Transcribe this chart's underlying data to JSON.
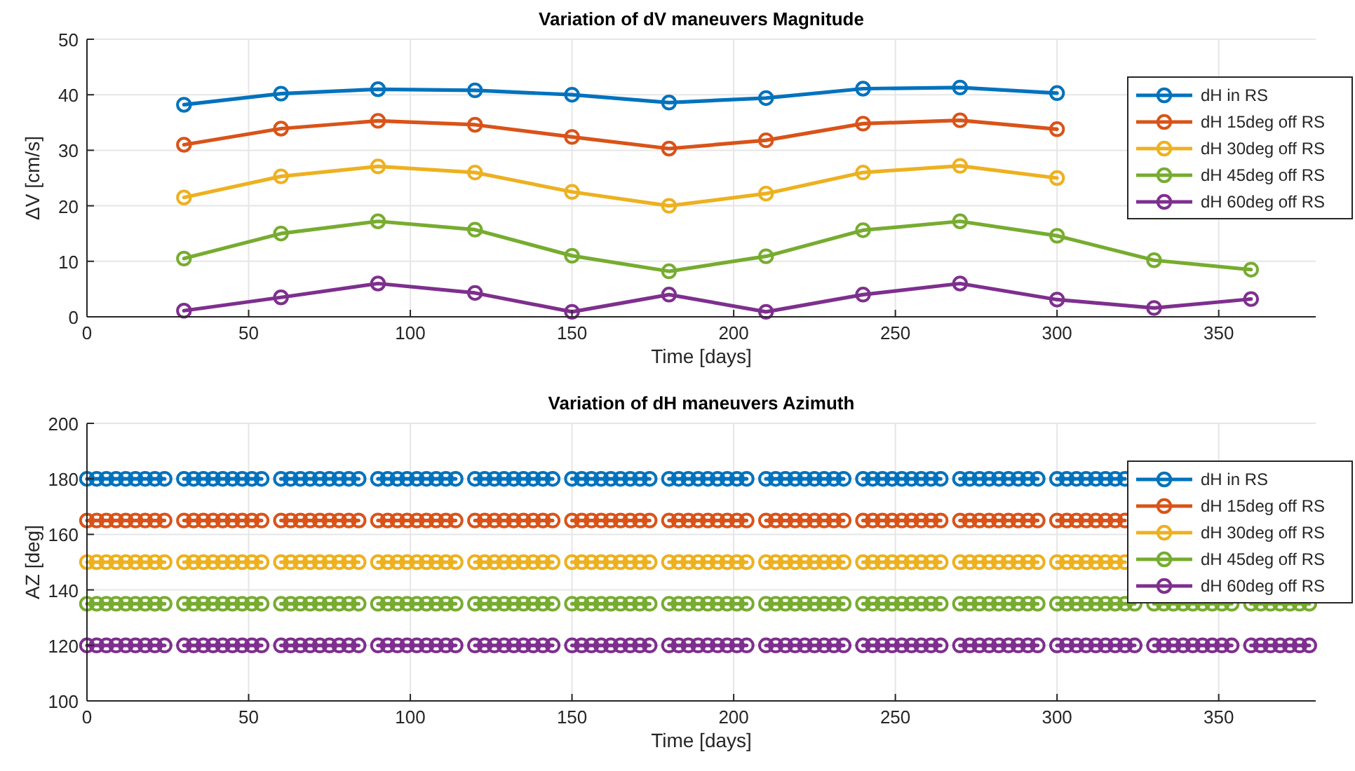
{
  "chart_data": [
    {
      "type": "line",
      "title": "Variation of dV maneuvers Magnitude",
      "xlabel": "Time [days]",
      "ylabel": "ΔV [cm/s]",
      "x": [
        30,
        60,
        90,
        120,
        150,
        180,
        210,
        240,
        270,
        300,
        330,
        360
      ],
      "xlim": [
        0,
        380
      ],
      "xticks": [
        0,
        50,
        100,
        150,
        200,
        250,
        300,
        350
      ],
      "ylim": [
        0,
        50
      ],
      "yticks": [
        0,
        10,
        20,
        30,
        40,
        50
      ],
      "grid": true,
      "legend": "top right",
      "marker": "circle",
      "line_style": "solid",
      "series": [
        {
          "name": "dH in RS",
          "color": "#0072bd",
          "values": [
            38.2,
            40.2,
            41,
            40.8,
            40,
            38.6,
            39.4,
            41.1,
            41.3,
            40.3,
            null,
            null
          ]
        },
        {
          "name": "dH 15deg off RS",
          "color": "#d95319",
          "values": [
            31,
            33.9,
            35.3,
            34.6,
            32.4,
            30.3,
            31.8,
            34.8,
            35.4,
            33.8,
            null,
            null
          ]
        },
        {
          "name": "dH 30deg off RS",
          "color": "#edb120",
          "values": [
            21.5,
            25.3,
            27.1,
            26,
            22.5,
            20,
            22.2,
            26,
            27.2,
            25,
            null,
            null
          ]
        },
        {
          "name": "dH 45deg off RS",
          "color": "#77ac30",
          "values": [
            10.5,
            15,
            17.2,
            15.7,
            11,
            8.2,
            10.9,
            15.6,
            17.2,
            14.6,
            10.2,
            8.5
          ]
        },
        {
          "name": "dH 60deg off RS",
          "color": "#7e2f8e",
          "values": [
            1.1,
            3.5,
            6,
            4.3,
            0.9,
            4,
            0.9,
            4,
            6,
            3.1,
            1.6,
            3.2
          ]
        }
      ]
    },
    {
      "type": "line",
      "title": "Variation of dH maneuvers Azimuth",
      "xlabel": "Time [days]",
      "ylabel": "AZ [deg]",
      "x": [
        0,
        3,
        6,
        9,
        12,
        15,
        18,
        21,
        24,
        27,
        30,
        33,
        36,
        39,
        42,
        45,
        48,
        51,
        54,
        57,
        60,
        63,
        66,
        69,
        72,
        75,
        78,
        81,
        84,
        87,
        90,
        93,
        96,
        99,
        102,
        105,
        108,
        111,
        114,
        117,
        120,
        123,
        126,
        129,
        132,
        135,
        138,
        141,
        144,
        147,
        150,
        153,
        156,
        159,
        162,
        165,
        168,
        171,
        174,
        177,
        180,
        183,
        186,
        189,
        192,
        195,
        198,
        201,
        204,
        207,
        210,
        213,
        216,
        219,
        222,
        225,
        228,
        231,
        234,
        237,
        240,
        243,
        246,
        249,
        252,
        255,
        258,
        261,
        264,
        267,
        270,
        273,
        276,
        279,
        282,
        285,
        288,
        291,
        294,
        297,
        300,
        303,
        306,
        309,
        312,
        315,
        318,
        321,
        324,
        327,
        330,
        333,
        336,
        339,
        342,
        345,
        348,
        351,
        354,
        357,
        360,
        363,
        366,
        369,
        372,
        375,
        378
      ],
      "xlim": [
        0,
        380
      ],
      "xticks": [
        0,
        50,
        100,
        150,
        200,
        250,
        300,
        350
      ],
      "ylim": [
        100,
        200
      ],
      "yticks": [
        100,
        120,
        140,
        160,
        180,
        200
      ],
      "grid": true,
      "legend": "top right",
      "marker": "circle",
      "line_style": "solid",
      "series": [
        {
          "name": "dH in RS",
          "color": "#0072bd",
          "values": [
            180,
            180,
            180,
            180,
            180,
            180,
            180,
            180,
            180,
            null,
            180,
            180,
            180,
            180,
            180,
            180,
            180,
            180,
            180,
            null,
            180,
            180,
            180,
            180,
            180,
            180,
            180,
            180,
            180,
            null,
            180,
            180,
            180,
            180,
            180,
            180,
            180,
            180,
            180,
            null,
            180,
            180,
            180,
            180,
            180,
            180,
            180,
            180,
            180,
            null,
            180,
            180,
            180,
            180,
            180,
            180,
            180,
            180,
            180,
            null,
            180,
            180,
            180,
            180,
            180,
            180,
            180,
            180,
            180,
            null,
            180,
            180,
            180,
            180,
            180,
            180,
            180,
            180,
            180,
            null,
            180,
            180,
            180,
            180,
            180,
            180,
            180,
            180,
            180,
            null,
            180,
            180,
            180,
            180,
            180,
            180,
            180,
            180,
            180,
            null,
            180,
            180,
            180,
            180,
            180,
            180,
            180,
            180,
            null,
            null,
            null,
            null,
            null,
            null,
            null,
            null,
            null,
            null,
            null,
            null,
            null,
            null,
            null,
            null,
            null,
            null,
            null
          ]
        },
        {
          "name": "dH 15deg off RS",
          "color": "#d95319",
          "values": [
            165,
            165,
            165,
            165,
            165,
            165,
            165,
            165,
            165,
            null,
            165,
            165,
            165,
            165,
            165,
            165,
            165,
            165,
            165,
            null,
            165,
            165,
            165,
            165,
            165,
            165,
            165,
            165,
            165,
            null,
            165,
            165,
            165,
            165,
            165,
            165,
            165,
            165,
            165,
            null,
            165,
            165,
            165,
            165,
            165,
            165,
            165,
            165,
            165,
            null,
            165,
            165,
            165,
            165,
            165,
            165,
            165,
            165,
            165,
            null,
            165,
            165,
            165,
            165,
            165,
            165,
            165,
            165,
            165,
            null,
            165,
            165,
            165,
            165,
            165,
            165,
            165,
            165,
            165,
            null,
            165,
            165,
            165,
            165,
            165,
            165,
            165,
            165,
            165,
            null,
            165,
            165,
            165,
            165,
            165,
            165,
            165,
            165,
            165,
            null,
            165,
            165,
            165,
            165,
            165,
            165,
            165,
            165,
            null,
            null,
            null,
            null,
            null,
            null,
            null,
            null,
            null,
            null,
            null,
            null,
            null,
            null,
            null,
            null,
            null,
            null,
            null
          ]
        },
        {
          "name": "dH 30deg off RS",
          "color": "#edb120",
          "values": [
            150,
            150,
            150,
            150,
            150,
            150,
            150,
            150,
            150,
            null,
            150,
            150,
            150,
            150,
            150,
            150,
            150,
            150,
            150,
            null,
            150,
            150,
            150,
            150,
            150,
            150,
            150,
            150,
            150,
            null,
            150,
            150,
            150,
            150,
            150,
            150,
            150,
            150,
            150,
            null,
            150,
            150,
            150,
            150,
            150,
            150,
            150,
            150,
            150,
            null,
            150,
            150,
            150,
            150,
            150,
            150,
            150,
            150,
            150,
            null,
            150,
            150,
            150,
            150,
            150,
            150,
            150,
            150,
            150,
            null,
            150,
            150,
            150,
            150,
            150,
            150,
            150,
            150,
            150,
            null,
            150,
            150,
            150,
            150,
            150,
            150,
            150,
            150,
            150,
            null,
            150,
            150,
            150,
            150,
            150,
            150,
            150,
            150,
            150,
            null,
            150,
            150,
            150,
            150,
            150,
            150,
            150,
            150,
            null,
            null,
            null,
            null,
            null,
            null,
            null,
            null,
            null,
            null,
            null,
            null,
            null,
            null,
            null,
            null,
            null,
            null,
            null
          ]
        },
        {
          "name": "dH 45deg off RS",
          "color": "#77ac30",
          "values": [
            135,
            135,
            135,
            135,
            135,
            135,
            135,
            135,
            135,
            null,
            135,
            135,
            135,
            135,
            135,
            135,
            135,
            135,
            135,
            null,
            135,
            135,
            135,
            135,
            135,
            135,
            135,
            135,
            135,
            null,
            135,
            135,
            135,
            135,
            135,
            135,
            135,
            135,
            135,
            null,
            135,
            135,
            135,
            135,
            135,
            135,
            135,
            135,
            135,
            null,
            135,
            135,
            135,
            135,
            135,
            135,
            135,
            135,
            135,
            null,
            135,
            135,
            135,
            135,
            135,
            135,
            135,
            135,
            135,
            null,
            135,
            135,
            135,
            135,
            135,
            135,
            135,
            135,
            135,
            null,
            135,
            135,
            135,
            135,
            135,
            135,
            135,
            135,
            135,
            null,
            135,
            135,
            135,
            135,
            135,
            135,
            135,
            135,
            135,
            null,
            135,
            135,
            135,
            135,
            135,
            135,
            135,
            135,
            135,
            null,
            135,
            135,
            135,
            135,
            135,
            135,
            135,
            135,
            135,
            null,
            135,
            135,
            135,
            135,
            135,
            135,
            135
          ]
        },
        {
          "name": "dH 60deg off RS",
          "color": "#7e2f8e",
          "values": [
            120,
            120,
            120,
            120,
            120,
            120,
            120,
            120,
            120,
            null,
            120,
            120,
            120,
            120,
            120,
            120,
            120,
            120,
            120,
            null,
            120,
            120,
            120,
            120,
            120,
            120,
            120,
            120,
            120,
            null,
            120,
            120,
            120,
            120,
            120,
            120,
            120,
            120,
            120,
            null,
            120,
            120,
            120,
            120,
            120,
            120,
            120,
            120,
            120,
            null,
            120,
            120,
            120,
            120,
            120,
            120,
            120,
            120,
            120,
            null,
            120,
            120,
            120,
            120,
            120,
            120,
            120,
            120,
            120,
            null,
            120,
            120,
            120,
            120,
            120,
            120,
            120,
            120,
            120,
            null,
            120,
            120,
            120,
            120,
            120,
            120,
            120,
            120,
            120,
            null,
            120,
            120,
            120,
            120,
            120,
            120,
            120,
            120,
            120,
            null,
            120,
            120,
            120,
            120,
            120,
            120,
            120,
            120,
            120,
            null,
            120,
            120,
            120,
            120,
            120,
            120,
            120,
            120,
            120,
            null,
            120,
            120,
            120,
            120,
            120,
            120,
            120
          ]
        }
      ]
    }
  ]
}
